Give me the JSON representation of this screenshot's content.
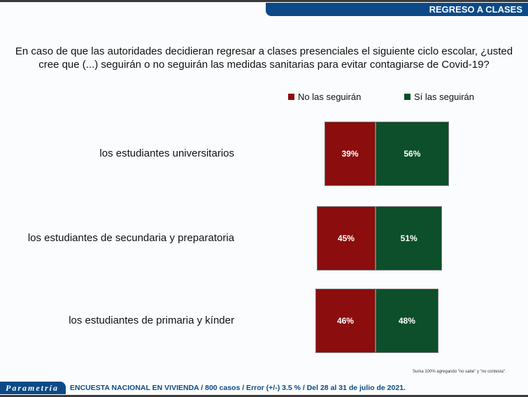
{
  "header": {
    "title": "REGRESO A CLASES"
  },
  "chart_data": {
    "type": "bar",
    "orientation": "horizontal-stacked-diverging",
    "title": "En caso de que las autoridades decidieran regresar a clases presenciales el siguiente ciclo escolar, ¿usted cree que (...) seguirán o no seguirán las medidas sanitarias para evitar contagiarse de Covid-19?",
    "categories": [
      "los estudiantes universitarios",
      "los estudiantes de secundaria y preparatoria",
      "los estudiantes de primaria y kínder"
    ],
    "series": [
      {
        "name": "No las seguirán",
        "values": [
          39,
          45,
          46
        ],
        "labels": [
          "39%",
          "45%",
          "46%"
        ],
        "color": "#8b0d0d"
      },
      {
        "name": "Sí las seguirán",
        "values": [
          56,
          51,
          48
        ],
        "labels": [
          "56%",
          "51%",
          "48%"
        ],
        "color": "#0c4f2a"
      }
    ],
    "legend": "top-right",
    "note": "Suma 100%  agregando \"no sabe\" y \"no contesta\"."
  },
  "footer": {
    "logo": "Parametría",
    "text": "ENCUESTA NACIONAL EN VIVIENDA / 800 casos / Error (+/-) 3.5 % / Del 28 al 31 de julio de 2021."
  }
}
